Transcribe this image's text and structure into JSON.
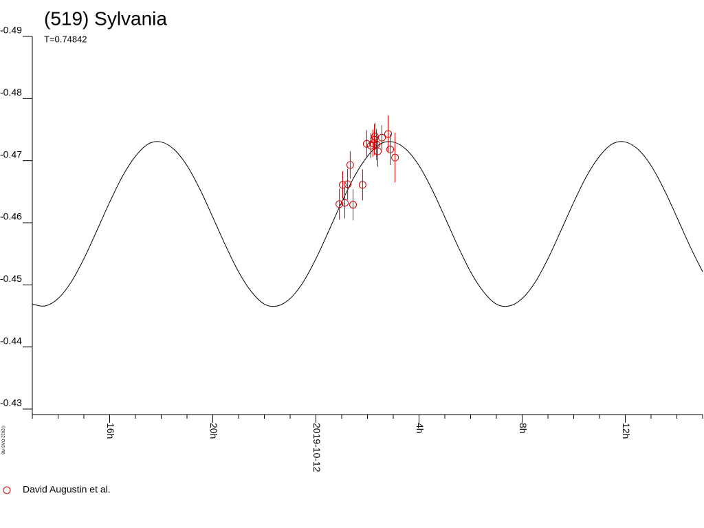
{
  "chart_data": {
    "type": "line",
    "title": "(519) Sylvania",
    "subtitle": "T=0.74842",
    "credit": "©2022 OAS-R8",
    "ylim": [
      -0.49,
      -0.43
    ],
    "y_inverted": true,
    "yticks": [
      -0.49,
      -0.48,
      -0.47,
      -0.46,
      -0.45,
      -0.44,
      -0.43
    ],
    "xlim": [
      -11,
      15
    ],
    "xticks": [
      {
        "value": -8,
        "label": "16h"
      },
      {
        "value": -4,
        "label": "20h"
      },
      {
        "value": 0,
        "label": "2019-10-12"
      },
      {
        "value": 4,
        "label": "4h"
      },
      {
        "value": 8,
        "label": "8h"
      },
      {
        "value": 12,
        "label": "12h"
      }
    ],
    "xminorticks": [
      -11,
      -10,
      -9,
      -8,
      -7,
      -6,
      -5,
      -4,
      -3,
      -2,
      -1,
      0,
      1,
      2,
      3,
      4,
      5,
      6,
      7,
      8,
      9,
      10,
      11,
      12,
      13,
      14,
      15
    ],
    "curve": {
      "color": "#000000",
      "x": [
        -11,
        -10.5,
        -10,
        -9.5,
        -9,
        -8.5,
        -8,
        -7.5,
        -7,
        -6.5,
        -6,
        -5.5,
        -5,
        -4.5,
        -4,
        -3.5,
        -3,
        -2.5,
        -2,
        -1.5,
        -1,
        -0.5,
        0,
        0.5,
        1,
        1.5,
        2,
        2.5,
        3,
        3.5,
        4,
        4.5,
        5,
        5.5,
        6,
        6.5,
        7,
        7.5,
        8,
        8.5,
        9,
        9.5,
        10,
        10.5,
        11,
        11.5,
        12,
        12.5,
        13,
        13.5,
        14,
        14.5,
        15
      ],
      "values": [
        -0.4469,
        -0.4466,
        -0.4478,
        -0.4504,
        -0.4542,
        -0.4587,
        -0.4633,
        -0.4675,
        -0.4707,
        -0.4727,
        -0.473,
        -0.4718,
        -0.4692,
        -0.4654,
        -0.4609,
        -0.4563,
        -0.4521,
        -0.4489,
        -0.4469,
        -0.4466,
        -0.4478,
        -0.4504,
        -0.4542,
        -0.4587,
        -0.4633,
        -0.4675,
        -0.4707,
        -0.4727,
        -0.473,
        -0.4718,
        -0.4692,
        -0.4654,
        -0.4609,
        -0.4563,
        -0.4521,
        -0.4489,
        -0.4469,
        -0.4466,
        -0.4478,
        -0.4504,
        -0.4542,
        -0.4587,
        -0.4633,
        -0.4675,
        -0.4707,
        -0.4727,
        -0.473,
        -0.4718,
        -0.4692,
        -0.4654,
        -0.4609,
        -0.4563,
        -0.4521
      ]
    },
    "series": [
      {
        "name": "David Augustin et al.",
        "color": "#cc0000",
        "x": [
          0.91,
          1.04,
          1.12,
          1.23,
          1.33,
          1.44,
          1.81,
          1.97,
          2.13,
          2.21,
          2.27,
          2.29,
          2.35,
          2.4,
          2.56,
          2.8,
          2.88,
          3.07
        ],
        "values": [
          -0.463,
          -0.4661,
          -0.4632,
          -0.4662,
          -0.4693,
          -0.4629,
          -0.4661,
          -0.4727,
          -0.4724,
          -0.4728,
          -0.4734,
          -0.4739,
          -0.4726,
          -0.4715,
          -0.4737,
          -0.4743,
          -0.4718,
          -0.4705
        ],
        "errors": [
          0.0025,
          0.0022,
          0.0025,
          0.0025,
          0.0022,
          0.0025,
          0.0025,
          0.0022,
          0.002,
          0.0022,
          0.0025,
          0.0022,
          0.0025,
          0.0025,
          0.002,
          0.003,
          0.0025,
          0.004
        ]
      }
    ]
  }
}
